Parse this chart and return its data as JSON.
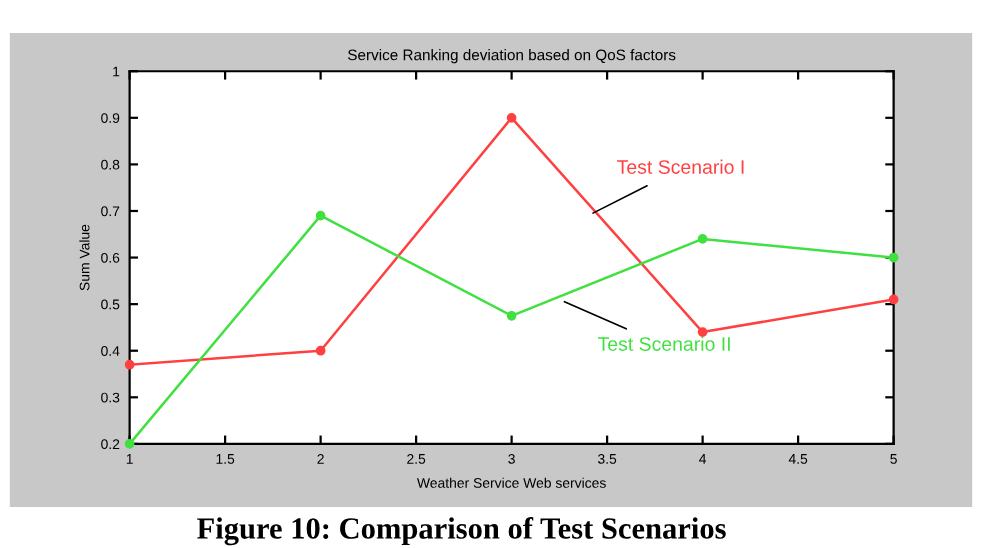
{
  "chart_data": {
    "type": "line",
    "title": "Service Ranking deviation based on QoS factors",
    "xlabel": "Weather Service Web services",
    "ylabel": "Sum Value",
    "x": [
      1,
      2,
      3,
      4,
      5
    ],
    "series": [
      {
        "name": "Test Scenario I",
        "color": "#ff4040",
        "values": [
          0.37,
          0.4,
          0.9,
          0.44,
          0.51
        ]
      },
      {
        "name": "Test Scenario II",
        "color": "#40e040",
        "values": [
          0.2,
          0.69,
          0.475,
          0.64,
          0.6
        ]
      }
    ],
    "xlim": [
      1,
      5
    ],
    "xticks": [
      1,
      1.5,
      2,
      2.5,
      3,
      3.5,
      4,
      4.5,
      5
    ],
    "ylim": [
      0.2,
      1
    ],
    "yticks": [
      0.2,
      0.3,
      0.4,
      0.5,
      0.6,
      0.7,
      0.8,
      0.9,
      1
    ],
    "grid": false,
    "legend": false,
    "marker": "circle",
    "line_style": "solid",
    "annotations": [
      "Figure 10: Comparison of Test Scenarios"
    ]
  }
}
